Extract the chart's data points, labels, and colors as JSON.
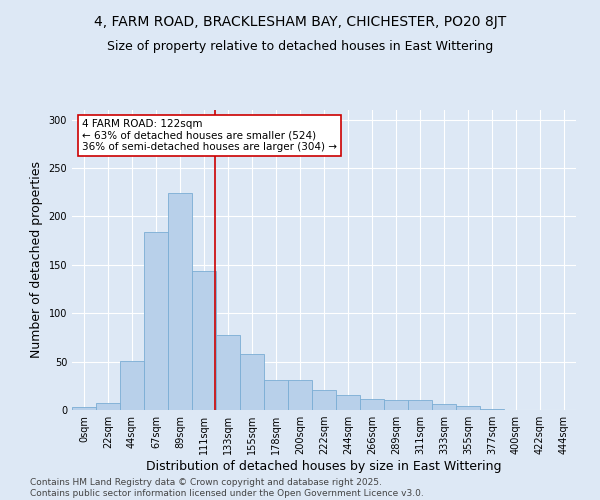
{
  "title_line1": "4, FARM ROAD, BRACKLESHAM BAY, CHICHESTER, PO20 8JT",
  "title_line2": "Size of property relative to detached houses in East Wittering",
  "xlabel": "Distribution of detached houses by size in East Wittering",
  "ylabel": "Number of detached properties",
  "categories": [
    "0sqm",
    "22sqm",
    "44sqm",
    "67sqm",
    "89sqm",
    "111sqm",
    "133sqm",
    "155sqm",
    "178sqm",
    "200sqm",
    "222sqm",
    "244sqm",
    "266sqm",
    "289sqm",
    "311sqm",
    "333sqm",
    "355sqm",
    "377sqm",
    "400sqm",
    "422sqm",
    "444sqm"
  ],
  "values": [
    3,
    7,
    51,
    184,
    224,
    144,
    78,
    58,
    31,
    31,
    21,
    16,
    11,
    10,
    10,
    6,
    4,
    1,
    0,
    0,
    0
  ],
  "bar_color": "#b8d0ea",
  "bar_edge_color": "#7aadd4",
  "annotation_text": "4 FARM ROAD: 122sqm\n← 63% of detached houses are smaller (524)\n36% of semi-detached houses are larger (304) →",
  "vline_x": 5.45,
  "vline_color": "#cc0000",
  "annotation_box_color": "#ffffff",
  "annotation_box_edge": "#cc0000",
  "background_color": "#dde8f5",
  "grid_color": "#ffffff",
  "footer_line1": "Contains HM Land Registry data © Crown copyright and database right 2025.",
  "footer_line2": "Contains public sector information licensed under the Open Government Licence v3.0.",
  "ylim": [
    0,
    310
  ],
  "title_fontsize": 10,
  "subtitle_fontsize": 9,
  "axis_label_fontsize": 9,
  "tick_fontsize": 7,
  "annotation_fontsize": 7.5,
  "footer_fontsize": 6.5
}
